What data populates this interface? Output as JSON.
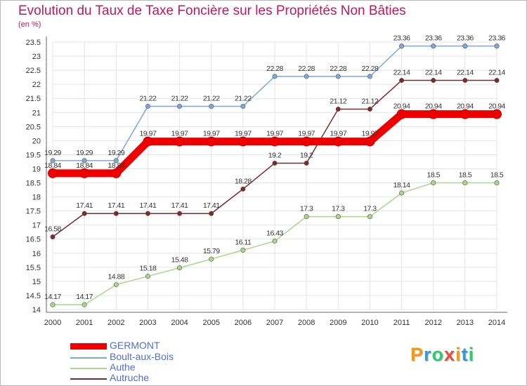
{
  "chart_data": {
    "type": "line",
    "title": "Evolution du Taux de Taxe Foncière sur les Propriétés Non Bâties",
    "unit_label": "(en %)",
    "ylim": [
      14,
      23.5
    ],
    "yticks": [
      "14",
      "14.5",
      "15",
      "15.5",
      "16",
      "16.5",
      "17",
      "17.5",
      "18",
      "18.5",
      "19",
      "19.5",
      "20",
      "20.5",
      "21",
      "21.5",
      "22",
      "22.5",
      "23",
      "23.5"
    ],
    "x": [
      "2000",
      "2001",
      "2002",
      "2003",
      "2004",
      "2005",
      "2006",
      "2007",
      "2008",
      "2009",
      "2010",
      "2011",
      "2012",
      "2013",
      "2014"
    ],
    "series": [
      {
        "name": "GERMONT",
        "color": "#ee0000",
        "values": [
          18.84,
          18.84,
          18.84,
          19.97,
          19.97,
          19.97,
          19.97,
          19.97,
          19.97,
          19.97,
          19.97,
          20.94,
          20.94,
          20.94,
          20.94
        ],
        "labels": [
          "18.84",
          "18.84",
          "18.84",
          "19.97",
          "19.97",
          "19.97",
          "19.97",
          "19.97",
          "19.97",
          "19.97",
          "19.97",
          "20.94",
          "20.94",
          "20.94",
          "20.94"
        ]
      },
      {
        "name": "Boult-aux-Bois",
        "color": "#7ea8d6",
        "values": [
          19.29,
          19.29,
          19.29,
          21.22,
          21.22,
          21.22,
          21.22,
          22.28,
          22.28,
          22.28,
          22.28,
          23.36,
          23.36,
          23.36,
          23.36
        ],
        "labels": [
          "19.29",
          "19.29",
          "19.29",
          "21.22",
          "21.22",
          "21.22",
          "21.22",
          "22.28",
          "22.28",
          "22.28",
          "22.28",
          "23.36",
          "23.36",
          "23.36",
          "23.36"
        ]
      },
      {
        "name": "Authe",
        "color": "#a8d88a",
        "values": [
          14.17,
          14.17,
          14.88,
          15.18,
          15.48,
          15.79,
          16.11,
          16.43,
          17.3,
          17.3,
          17.3,
          18.14,
          18.5,
          18.5,
          18.5
        ],
        "labels": [
          "14.17",
          "14.17",
          "14.88",
          "15.18",
          "15.48",
          "15.79",
          "16.11",
          "16.43",
          "17.3",
          "17.3",
          "17.3",
          "18.14",
          "18.5",
          "18.5",
          "18.5"
        ]
      },
      {
        "name": "Autruche",
        "color": "#7b2b2b",
        "values": [
          16.58,
          17.41,
          17.41,
          17.41,
          17.41,
          17.41,
          18.28,
          19.2,
          19.2,
          21.12,
          21.12,
          22.14,
          22.14,
          22.14,
          22.14
        ],
        "labels": [
          "16.58",
          "17.41",
          "17.41",
          "17.41",
          "17.41",
          "17.41",
          "18.28",
          "19.2",
          "19.2",
          "21.12",
          "21.12",
          "22.14",
          "22.14",
          "22.14",
          "22.14"
        ]
      }
    ],
    "legend_position": "bottom-left"
  },
  "brand": {
    "letters": [
      "P",
      "r",
      "o",
      "x",
      "i",
      "t",
      "i"
    ],
    "colors": [
      "#f39c12",
      "#3498db",
      "#2ecc71",
      "#e74c3c",
      "#f39c12",
      "#3498db",
      "#2ecc71"
    ]
  }
}
